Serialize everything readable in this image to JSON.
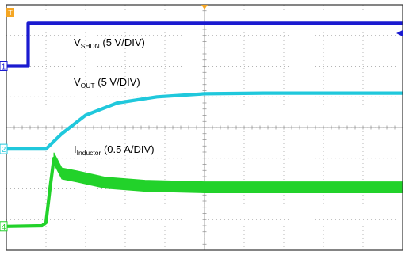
{
  "chart_data": {
    "type": "line",
    "divisions": {
      "x": 10,
      "y": 8
    },
    "grid": true,
    "series": [
      {
        "channel": "1",
        "color": "#1a1ad0",
        "label_main": "V",
        "label_sub": "SHDN",
        "label_rest": " (5 V/DIV)",
        "points": [
          [
            0,
            6.0
          ],
          [
            0.45,
            6.0
          ],
          [
            0.55,
            6.0
          ],
          [
            0.55,
            7.4
          ],
          [
            10,
            7.4
          ]
        ]
      },
      {
        "channel": "2",
        "color": "#20c8dc",
        "label_main": "V",
        "label_sub": "OUT",
        "label_rest": " (5 V/DIV)",
        "points": [
          [
            0,
            3.3
          ],
          [
            1.0,
            3.3
          ],
          [
            1.4,
            3.8
          ],
          [
            2.0,
            4.4
          ],
          [
            2.8,
            4.8
          ],
          [
            3.8,
            5.0
          ],
          [
            5.0,
            5.1
          ],
          [
            6.5,
            5.12
          ],
          [
            10,
            5.12
          ]
        ]
      },
      {
        "channel": "4",
        "color": "#22d22a",
        "label_main": "I",
        "label_sub": "Inductor",
        "label_rest": " (0.5 A/DIV)",
        "points": [
          [
            0,
            0.78
          ],
          [
            0.9,
            0.8
          ],
          [
            1.0,
            0.9
          ],
          [
            1.1,
            2.0
          ],
          [
            1.2,
            3.0
          ],
          [
            1.4,
            2.5
          ],
          [
            1.8,
            2.4
          ],
          [
            2.5,
            2.2
          ],
          [
            3.5,
            2.1
          ],
          [
            5.0,
            2.05
          ],
          [
            10,
            2.05
          ]
        ],
        "ripple_from": 1.15,
        "ripple_amplitude": 0.18
      }
    ]
  },
  "markers": {
    "trigger": "T",
    "channels": [
      "1",
      "2",
      "4"
    ]
  }
}
